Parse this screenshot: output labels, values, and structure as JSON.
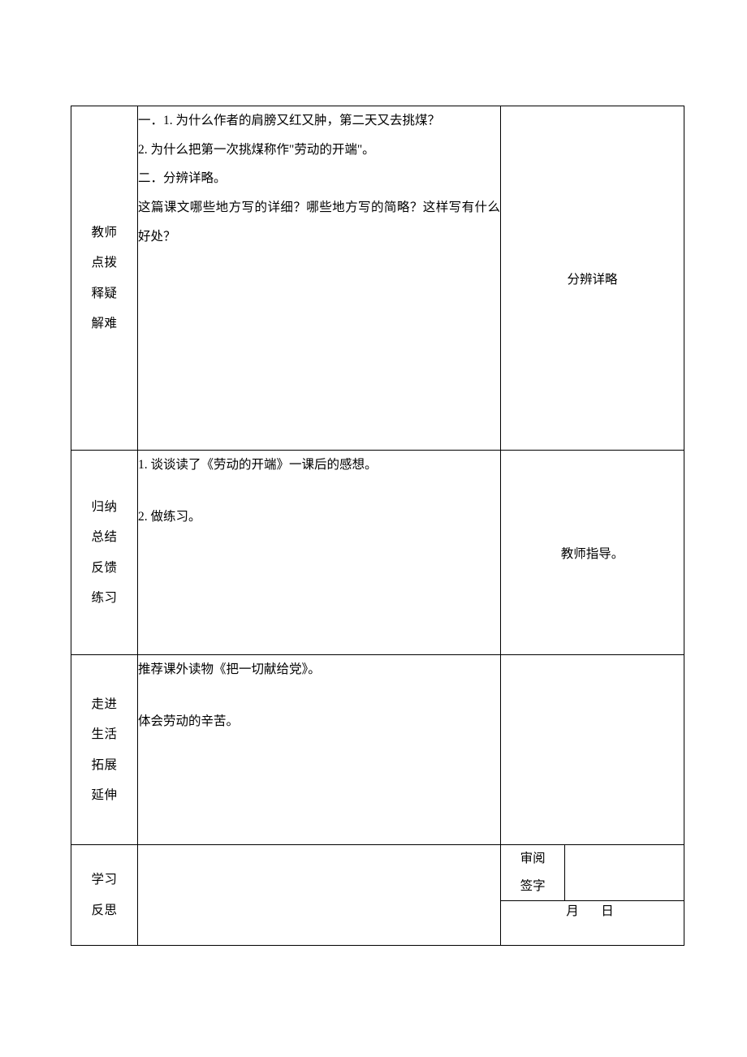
{
  "rows": [
    {
      "label": "教师\n点拨\n释疑\n解难",
      "content": "一．1. 为什么作者的肩膀又红又肿，第二天又去挑煤？\n2. 为什么把第一次挑煤称作\"劳动的开端\"。\n二．分辨详略。\n这篇课文哪些地方写的详细？哪些地方写的简略？这样写有什么好处？",
      "note": "分辨详略"
    },
    {
      "label": "归纳\n总结\n反馈\n练习",
      "content_lines": [
        "1. 谈谈读了《劳动的开端》一课后的感想。",
        "",
        "2. 做练习。"
      ],
      "note": "教师指导。"
    },
    {
      "label": "走进\n生活\n拓展\n延伸",
      "content_lines": [
        "推荐课外读物《把一切献给党》。",
        "",
        "体会劳动的辛苦。"
      ],
      "note": ""
    },
    {
      "label": "学习\n反思",
      "content": "",
      "approval_label": "审阅\n签字",
      "date_label": "月　日"
    }
  ]
}
